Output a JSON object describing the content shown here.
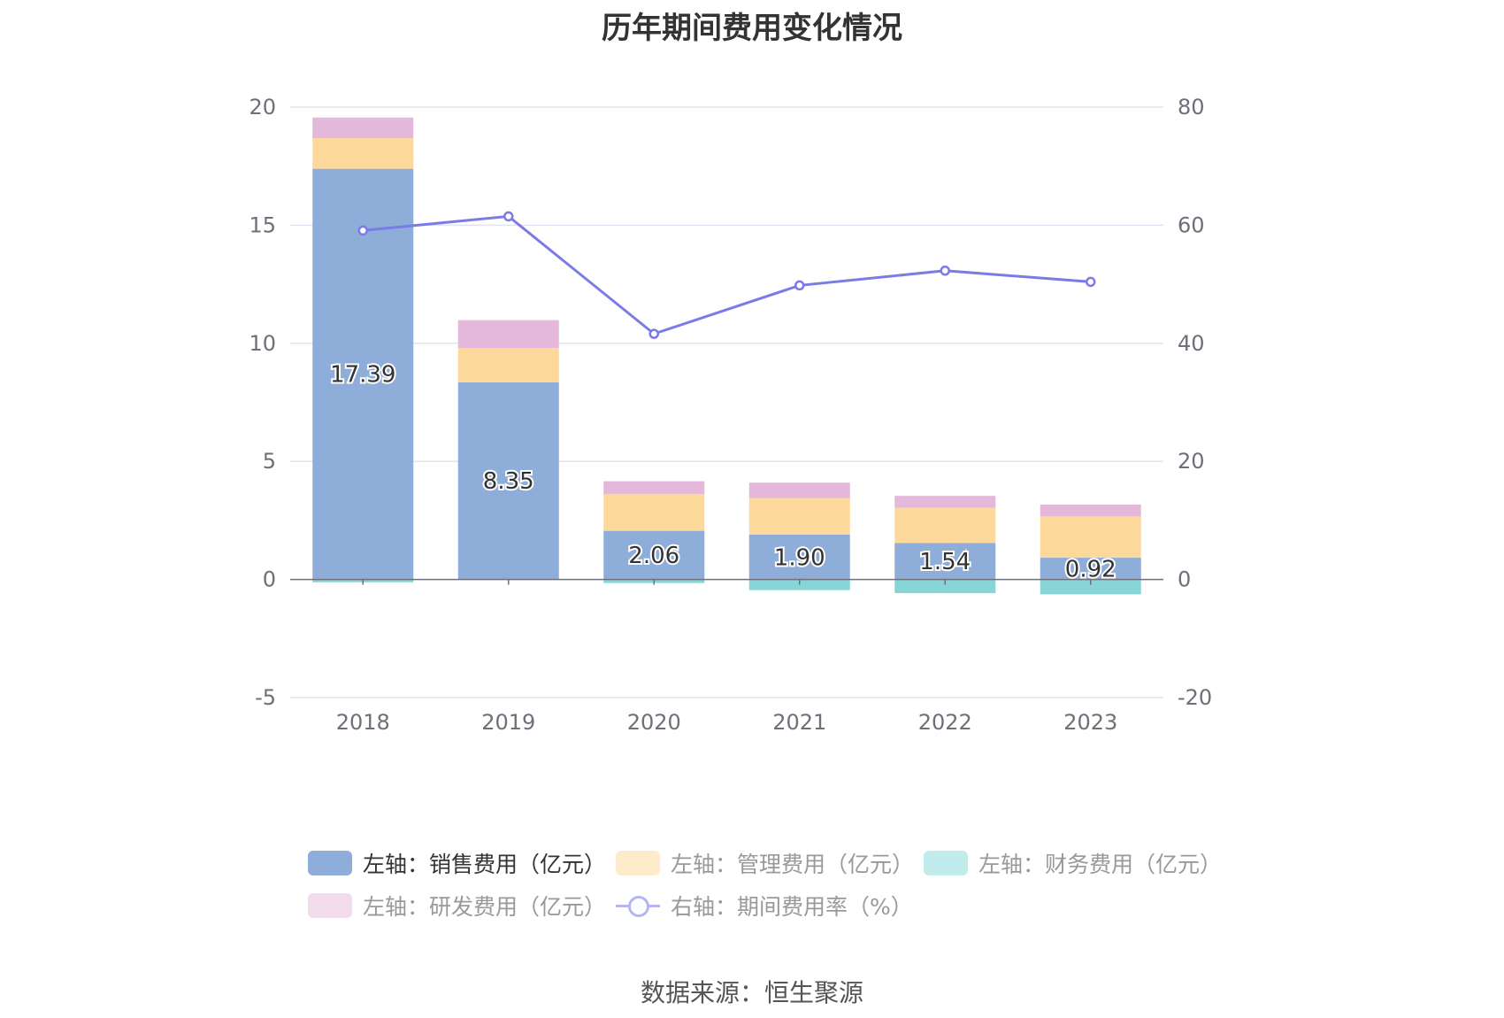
{
  "chart_data": {
    "type": "bar",
    "title": "历年期间费用变化情况",
    "categories": [
      "2018",
      "2019",
      "2020",
      "2021",
      "2022",
      "2023"
    ],
    "left_axis": {
      "min": -5,
      "max": 20,
      "ticks": [
        "-5",
        "0",
        "5",
        "10",
        "15",
        "20"
      ]
    },
    "right_axis": {
      "min": -20,
      "max": 80,
      "ticks": [
        "-20",
        "0",
        "20",
        "40",
        "60",
        "80"
      ]
    },
    "series": [
      {
        "name": "左轴：销售费用（亿元）",
        "axis": "left",
        "color": "#8eadd9",
        "legend_color": "#8eadd9",
        "legend_text_color": "#333333",
        "values": [
          17.39,
          8.35,
          2.06,
          1.9,
          1.54,
          0.92
        ],
        "labels": [
          "17.39",
          "8.35",
          "2.06",
          "1.90",
          "1.54",
          "0.92"
        ]
      },
      {
        "name": "左轴：管理费用（亿元）",
        "axis": "left",
        "color": "#fdd89b",
        "legend_color": "#feebcc",
        "legend_text_color": "#999999",
        "values": [
          1.3,
          1.45,
          1.55,
          1.55,
          1.5,
          1.75
        ]
      },
      {
        "name": "左轴：财务费用（亿元）",
        "axis": "left",
        "color": "#87d5d6",
        "legend_color": "#c2ebeb",
        "legend_text_color": "#999999",
        "values": [
          -0.12,
          0.0,
          -0.15,
          -0.45,
          -0.58,
          -0.63
        ]
      },
      {
        "name": "左轴：研发费用（亿元）",
        "axis": "left",
        "color": "#e4b8da",
        "legend_color": "#f1dcec",
        "legend_text_color": "#999999",
        "values": [
          0.87,
          1.18,
          0.55,
          0.65,
          0.5,
          0.5
        ]
      },
      {
        "name": "右轴：期间费用率（%）",
        "axis": "right",
        "type": "line",
        "color": "#7b7be8",
        "legend_color": "#b4b6f2",
        "legend_text_color": "#999999",
        "values": [
          59.1,
          61.5,
          41.6,
          49.8,
          52.3,
          50.4
        ]
      }
    ]
  },
  "source": "数据来源：恒生聚源"
}
